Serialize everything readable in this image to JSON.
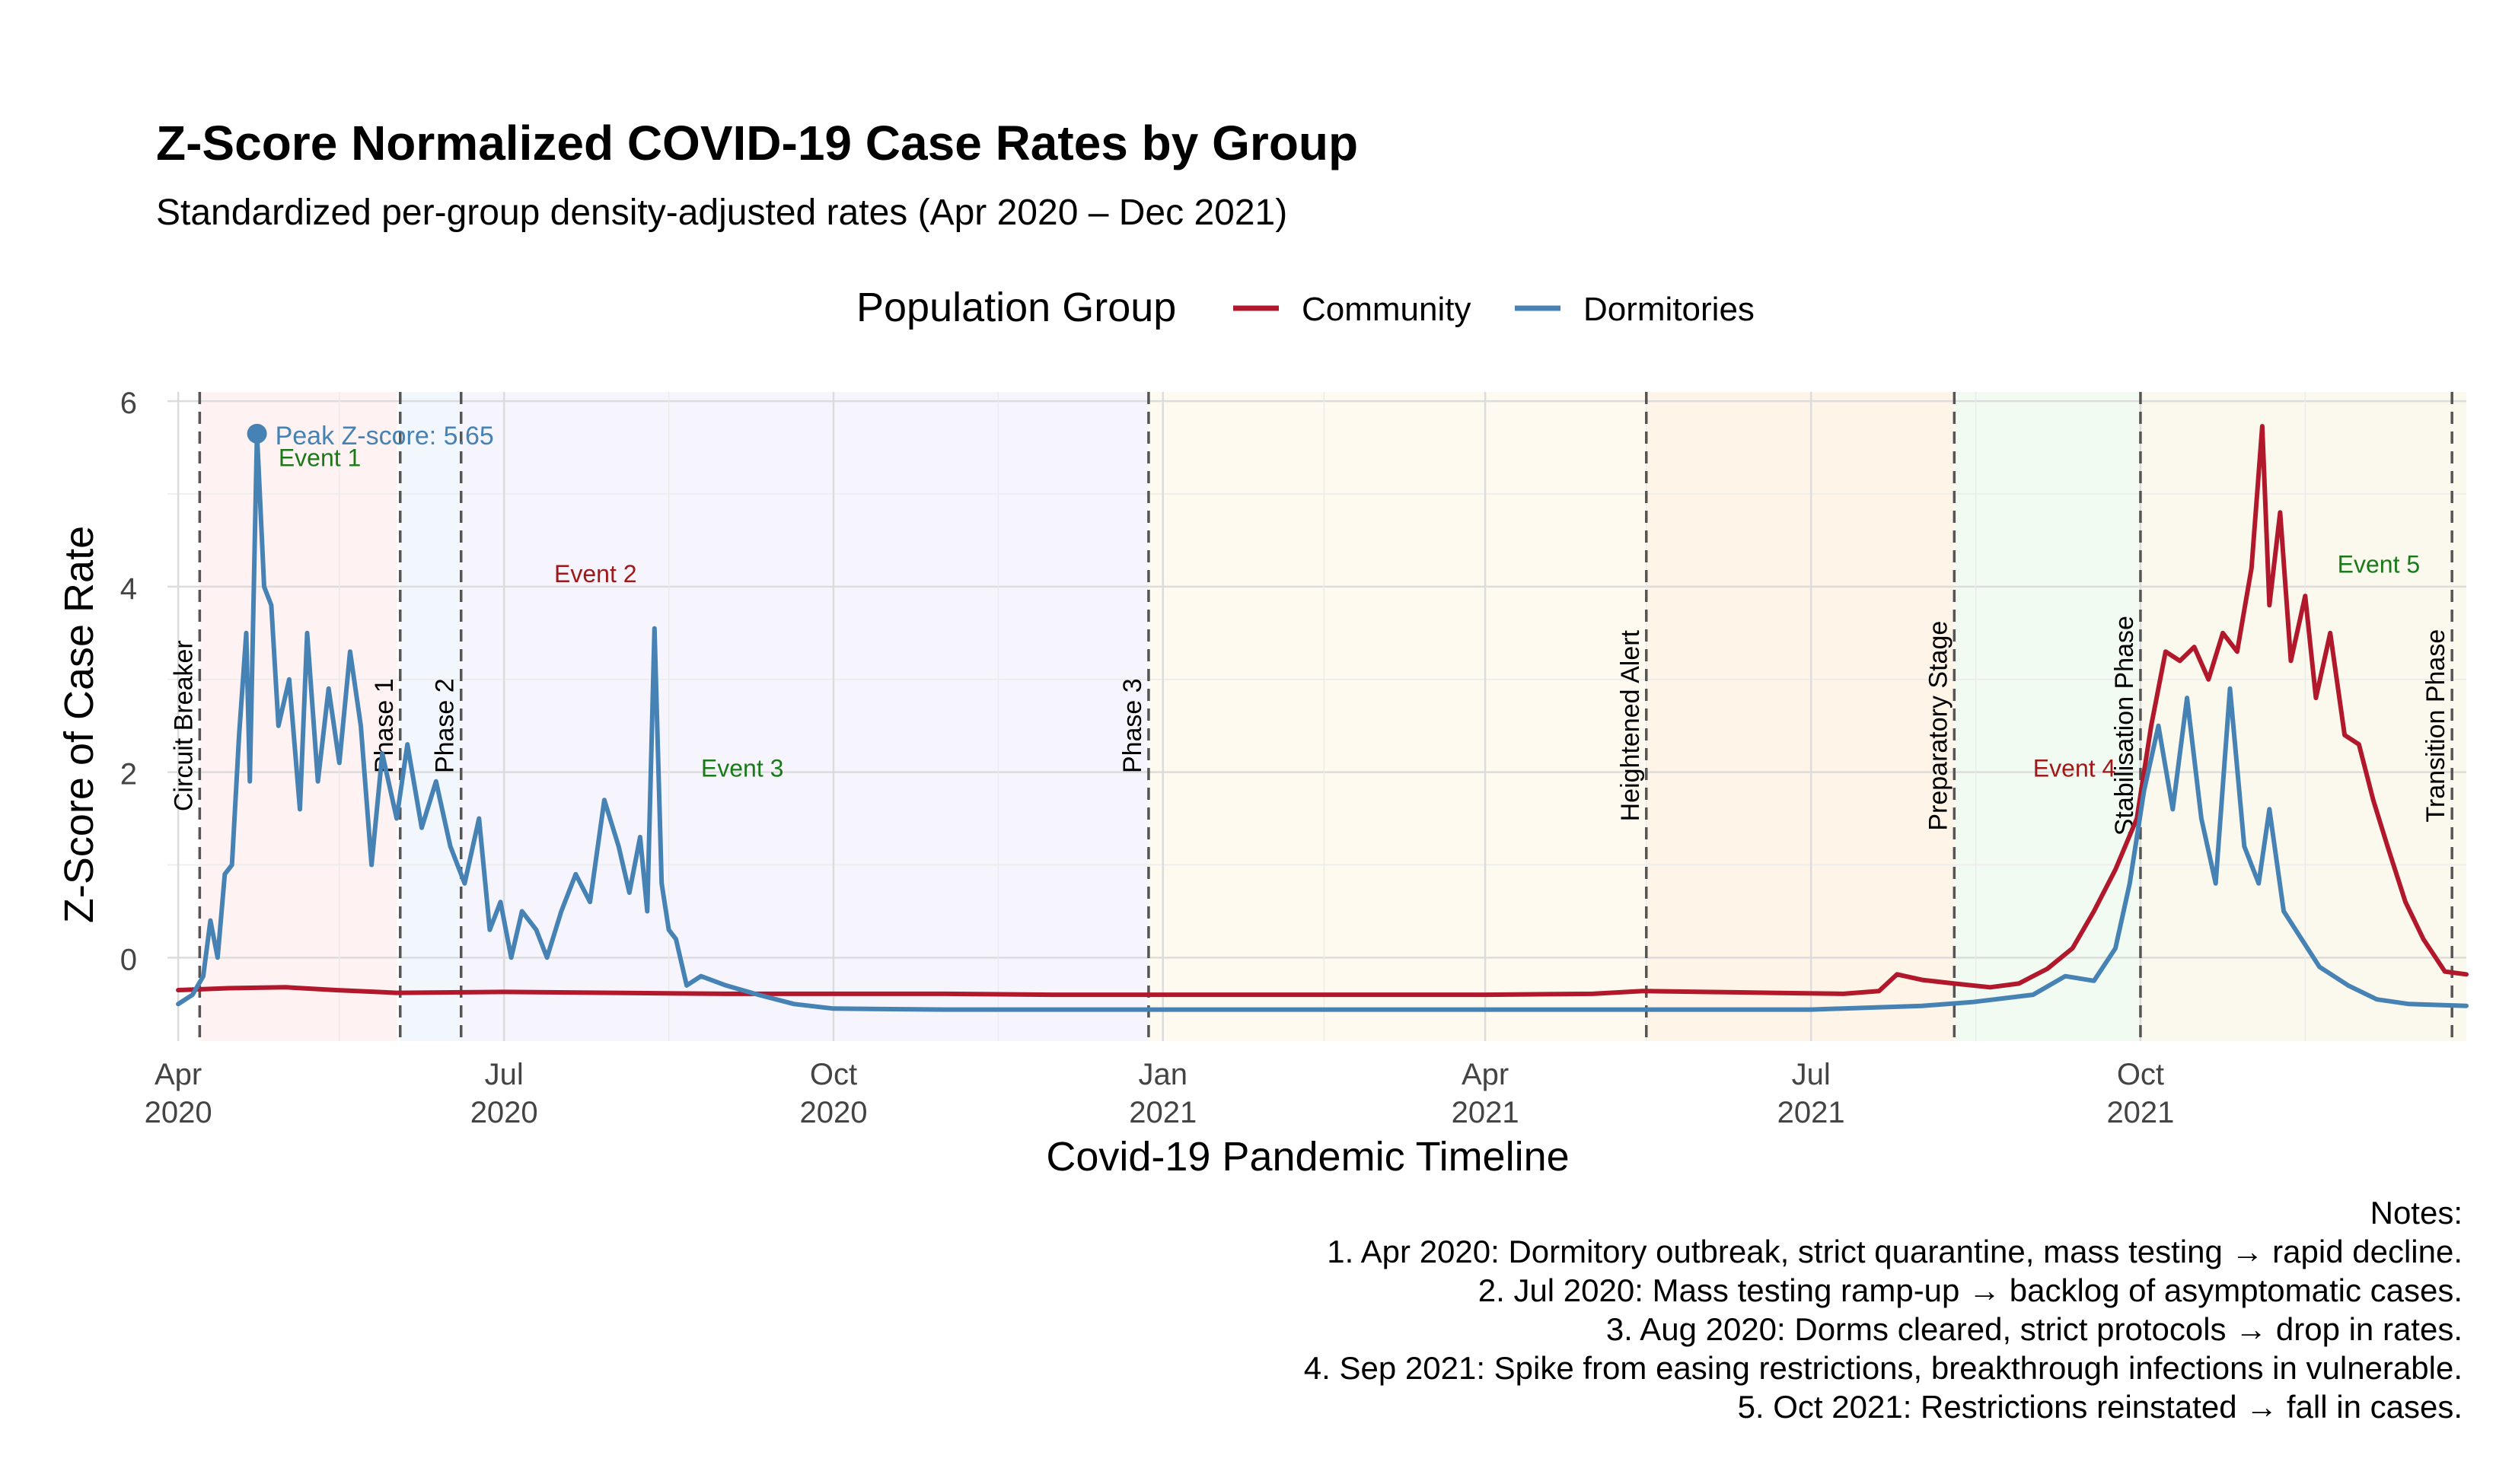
{
  "chart_data": {
    "type": "line",
    "title": "Z-Score Normalized COVID-19 Case Rates by Group",
    "subtitle": "Standardized per-group density-adjusted rates (Apr 2020 – Dec 2021)",
    "xlabel": "Covid-19 Pandemic Timeline",
    "ylabel": "Z-Score of Case Rate",
    "x_range": [
      "2020-03-29",
      "2021-12-31"
    ],
    "ylim": [
      -0.9,
      6.1
    ],
    "y_ticks": [
      0,
      2,
      4,
      6
    ],
    "x_ticks": [
      {
        "date": "2020-04-01",
        "label1": "Apr",
        "label2": "2020"
      },
      {
        "date": "2020-07-01",
        "label1": "Jul",
        "label2": "2020"
      },
      {
        "date": "2020-10-01",
        "label1": "Oct",
        "label2": "2020"
      },
      {
        "date": "2021-01-01",
        "label1": "Jan",
        "label2": "2021"
      },
      {
        "date": "2021-04-01",
        "label1": "Apr",
        "label2": "2021"
      },
      {
        "date": "2021-07-01",
        "label1": "Jul",
        "label2": "2021"
      },
      {
        "date": "2021-10-01",
        "label1": "Oct",
        "label2": "2021"
      }
    ],
    "grid": true,
    "legend": {
      "title": "Population Group",
      "placement": "top",
      "entries": [
        "Community",
        "Dormitories"
      ]
    },
    "series": [
      {
        "name": "Community",
        "color": "#b2182b",
        "points": [
          [
            "2020-04-01",
            -0.35
          ],
          [
            "2020-04-15",
            -0.33
          ],
          [
            "2020-05-01",
            -0.32
          ],
          [
            "2020-05-15",
            -0.35
          ],
          [
            "2020-06-01",
            -0.38
          ],
          [
            "2020-07-01",
            -0.37
          ],
          [
            "2020-08-01",
            -0.38
          ],
          [
            "2020-09-01",
            -0.39
          ],
          [
            "2020-10-01",
            -0.39
          ],
          [
            "2020-11-01",
            -0.39
          ],
          [
            "2020-12-01",
            -0.4
          ],
          [
            "2021-01-01",
            -0.4
          ],
          [
            "2021-02-01",
            -0.4
          ],
          [
            "2021-03-01",
            -0.4
          ],
          [
            "2021-04-01",
            -0.4
          ],
          [
            "2021-05-01",
            -0.39
          ],
          [
            "2021-05-15",
            -0.36
          ],
          [
            "2021-06-01",
            -0.37
          ],
          [
            "2021-06-20",
            -0.38
          ],
          [
            "2021-07-10",
            -0.39
          ],
          [
            "2021-07-20",
            -0.36
          ],
          [
            "2021-07-25",
            -0.18
          ],
          [
            "2021-08-01",
            -0.24
          ],
          [
            "2021-08-10",
            -0.28
          ],
          [
            "2021-08-20",
            -0.32
          ],
          [
            "2021-08-28",
            -0.28
          ],
          [
            "2021-09-05",
            -0.12
          ],
          [
            "2021-09-12",
            0.1
          ],
          [
            "2021-09-18",
            0.5
          ],
          [
            "2021-09-24",
            0.95
          ],
          [
            "2021-09-30",
            1.5
          ],
          [
            "2021-10-04",
            2.5
          ],
          [
            "2021-10-08",
            3.3
          ],
          [
            "2021-10-12",
            3.2
          ],
          [
            "2021-10-16",
            3.35
          ],
          [
            "2021-10-20",
            3.0
          ],
          [
            "2021-10-24",
            3.5
          ],
          [
            "2021-10-28",
            3.3
          ],
          [
            "2021-11-01",
            4.2
          ],
          [
            "2021-11-04",
            5.73
          ],
          [
            "2021-11-06",
            3.8
          ],
          [
            "2021-11-09",
            4.8
          ],
          [
            "2021-11-12",
            3.2
          ],
          [
            "2021-11-16",
            3.9
          ],
          [
            "2021-11-19",
            2.8
          ],
          [
            "2021-11-23",
            3.5
          ],
          [
            "2021-11-27",
            2.4
          ],
          [
            "2021-12-01",
            2.3
          ],
          [
            "2021-12-05",
            1.7
          ],
          [
            "2021-12-09",
            1.2
          ],
          [
            "2021-12-14",
            0.6
          ],
          [
            "2021-12-19",
            0.2
          ],
          [
            "2021-12-25",
            -0.15
          ],
          [
            "2021-12-31",
            -0.18
          ]
        ]
      },
      {
        "name": "Dormitories",
        "color": "#4682b4",
        "points": [
          [
            "2020-04-01",
            -0.5
          ],
          [
            "2020-04-05",
            -0.4
          ],
          [
            "2020-04-08",
            -0.2
          ],
          [
            "2020-04-10",
            0.4
          ],
          [
            "2020-04-12",
            0.0
          ],
          [
            "2020-04-14",
            0.9
          ],
          [
            "2020-04-16",
            1.0
          ],
          [
            "2020-04-18",
            2.4
          ],
          [
            "2020-04-20",
            3.5
          ],
          [
            "2020-04-21",
            1.9
          ],
          [
            "2020-04-23",
            5.65
          ],
          [
            "2020-04-25",
            4.0
          ],
          [
            "2020-04-27",
            3.8
          ],
          [
            "2020-04-29",
            2.5
          ],
          [
            "2020-05-02",
            3.0
          ],
          [
            "2020-05-05",
            1.6
          ],
          [
            "2020-05-07",
            3.5
          ],
          [
            "2020-05-10",
            1.9
          ],
          [
            "2020-05-13",
            2.9
          ],
          [
            "2020-05-16",
            2.1
          ],
          [
            "2020-05-19",
            3.3
          ],
          [
            "2020-05-22",
            2.5
          ],
          [
            "2020-05-25",
            1.0
          ],
          [
            "2020-05-28",
            2.2
          ],
          [
            "2020-06-01",
            1.5
          ],
          [
            "2020-06-04",
            2.3
          ],
          [
            "2020-06-08",
            1.4
          ],
          [
            "2020-06-12",
            1.9
          ],
          [
            "2020-06-16",
            1.2
          ],
          [
            "2020-06-20",
            0.8
          ],
          [
            "2020-06-24",
            1.5
          ],
          [
            "2020-06-27",
            0.3
          ],
          [
            "2020-06-30",
            0.6
          ],
          [
            "2020-07-03",
            0.0
          ],
          [
            "2020-07-06",
            0.5
          ],
          [
            "2020-07-10",
            0.3
          ],
          [
            "2020-07-13",
            0.0
          ],
          [
            "2020-07-17",
            0.5
          ],
          [
            "2020-07-21",
            0.9
          ],
          [
            "2020-07-25",
            0.6
          ],
          [
            "2020-07-29",
            1.7
          ],
          [
            "2020-08-02",
            1.2
          ],
          [
            "2020-08-05",
            0.7
          ],
          [
            "2020-08-08",
            1.3
          ],
          [
            "2020-08-10",
            0.5
          ],
          [
            "2020-08-12",
            3.55
          ],
          [
            "2020-08-14",
            0.8
          ],
          [
            "2020-08-16",
            0.3
          ],
          [
            "2020-08-18",
            0.2
          ],
          [
            "2020-08-21",
            -0.3
          ],
          [
            "2020-08-25",
            -0.2
          ],
          [
            "2020-09-01",
            -0.3
          ],
          [
            "2020-09-10",
            -0.4
          ],
          [
            "2020-09-20",
            -0.5
          ],
          [
            "2020-10-01",
            -0.55
          ],
          [
            "2020-11-01",
            -0.56
          ],
          [
            "2020-12-01",
            -0.56
          ],
          [
            "2021-01-01",
            -0.56
          ],
          [
            "2021-02-01",
            -0.56
          ],
          [
            "2021-03-01",
            -0.56
          ],
          [
            "2021-04-01",
            -0.56
          ],
          [
            "2021-05-01",
            -0.56
          ],
          [
            "2021-06-01",
            -0.56
          ],
          [
            "2021-07-01",
            -0.56
          ],
          [
            "2021-08-01",
            -0.52
          ],
          [
            "2021-08-15",
            -0.48
          ],
          [
            "2021-09-01",
            -0.4
          ],
          [
            "2021-09-10",
            -0.2
          ],
          [
            "2021-09-18",
            -0.25
          ],
          [
            "2021-09-24",
            0.1
          ],
          [
            "2021-09-28",
            0.8
          ],
          [
            "2021-10-02",
            1.8
          ],
          [
            "2021-10-06",
            2.5
          ],
          [
            "2021-10-10",
            1.6
          ],
          [
            "2021-10-14",
            2.8
          ],
          [
            "2021-10-18",
            1.5
          ],
          [
            "2021-10-22",
            0.8
          ],
          [
            "2021-10-26",
            2.9
          ],
          [
            "2021-10-30",
            1.2
          ],
          [
            "2021-11-03",
            0.8
          ],
          [
            "2021-11-06",
            1.6
          ],
          [
            "2021-11-10",
            0.5
          ],
          [
            "2021-11-15",
            0.2
          ],
          [
            "2021-11-20",
            -0.1
          ],
          [
            "2021-11-28",
            -0.3
          ],
          [
            "2021-12-06",
            -0.45
          ],
          [
            "2021-12-15",
            -0.5
          ],
          [
            "2021-12-31",
            -0.52
          ]
        ]
      }
    ],
    "phases": [
      {
        "label": "Circuit Breaker",
        "date": "2020-04-07",
        "band_end": "2020-06-01",
        "band_color": "#fde2e2"
      },
      {
        "label": "Phase 1",
        "date": "2020-06-02",
        "band_end": "2020-06-19",
        "band_color": "#e3eefc"
      },
      {
        "label": "Phase 2",
        "date": "2020-06-19",
        "band_end": "2020-12-28",
        "band_color": "#ece8fb"
      },
      {
        "label": "Phase 3",
        "date": "2020-12-28",
        "band_end": "2021-05-16",
        "band_color": "#fdf3dd"
      },
      {
        "label": "Heightened Alert",
        "date": "2021-05-16",
        "band_end": "2021-08-10",
        "band_color": "#fde7c9"
      },
      {
        "label": "Preparatory Stage",
        "date": "2021-08-10",
        "band_end": "2021-10-01",
        "band_color": "#dff7e0"
      },
      {
        "label": "Stabilisation Phase",
        "date": "2021-10-01",
        "band_end": "2021-12-27",
        "band_color": "#f6f2d8"
      },
      {
        "label": "Transition Phase",
        "date": "2021-12-27",
        "band_end": "2021-12-31",
        "band_color": "#f6f2d8"
      }
    ],
    "annotations": [
      {
        "label": "Peak Z-score: 5.65",
        "date": "2020-04-23",
        "y": 5.65,
        "color": "#4682b4",
        "marker": true
      },
      {
        "label": "Event 1",
        "date": "2020-04-29",
        "y": 5.3,
        "color": "#1a7a1a"
      },
      {
        "label": "Event 2",
        "date": "2020-07-15",
        "y": 4.05,
        "color": "#a01818"
      },
      {
        "label": "Event 3",
        "date": "2020-08-25",
        "y": 1.95,
        "color": "#1a7a1a"
      },
      {
        "label": "Event 4",
        "date": "2021-09-01",
        "y": 1.95,
        "color": "#a01818"
      },
      {
        "label": "Event 5",
        "date": "2021-11-25",
        "y": 4.15,
        "color": "#1a7a1a"
      }
    ],
    "notes": [
      "Notes:",
      "1. Apr 2020: Dormitory outbreak, strict quarantine, mass testing → rapid decline.",
      "2. Jul 2020: Mass testing ramp-up → backlog of asymptomatic cases.",
      "3. Aug 2020: Dorms cleared, strict protocols → drop in rates.",
      "4. Sep 2021: Spike from easing restrictions, breakthrough infections in vulnerable.",
      "5. Oct 2021: Restrictions reinstated → fall in cases."
    ]
  }
}
